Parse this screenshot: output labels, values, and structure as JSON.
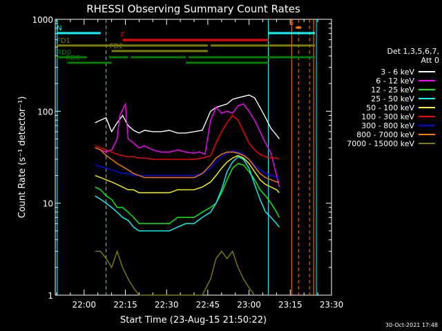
{
  "chart_data": {
    "type": "line",
    "title": "RHESSI Observing Summary Count Rates",
    "xlabel": "Start Time (23-Aug-15 21:50:22)",
    "ylabel": "Count Rate (s⁻¹ detector⁻¹)",
    "x_unit": "minutes after 22:00 UT",
    "xlim": [
      -10.5,
      90
    ],
    "ylim": [
      1,
      1000
    ],
    "y_scale": "log",
    "x_tick_values": [
      0,
      15,
      30,
      45,
      60,
      75,
      90
    ],
    "x_tick_labels": [
      "22:00",
      "22:15",
      "22:30",
      "22:45",
      "23:00",
      "23:15",
      "23:30"
    ],
    "y_tick_values": [
      1,
      10,
      100,
      1000
    ],
    "y_tick_labels": [
      "1",
      "10",
      "100",
      "1000"
    ],
    "legend_header": [
      "Det 1,3,5,6,7,",
      "Att 0"
    ],
    "legend_position": "right",
    "series": [
      {
        "name": "3 - 6 keV",
        "color": "#000000",
        "points": [
          [
            4,
            75
          ],
          [
            6,
            80
          ],
          [
            8,
            85
          ],
          [
            10,
            60
          ],
          [
            12,
            75
          ],
          [
            14,
            90
          ],
          [
            16,
            70
          ],
          [
            18,
            62
          ],
          [
            20,
            58
          ],
          [
            22,
            62
          ],
          [
            25,
            60
          ],
          [
            28,
            60
          ],
          [
            31,
            62
          ],
          [
            34,
            58
          ],
          [
            37,
            58
          ],
          [
            40,
            60
          ],
          [
            43,
            62
          ],
          [
            46,
            100
          ],
          [
            48,
            110
          ],
          [
            50,
            115
          ],
          [
            52,
            120
          ],
          [
            54,
            135
          ],
          [
            56,
            140
          ],
          [
            58,
            145
          ],
          [
            60,
            150
          ],
          [
            62,
            140
          ],
          [
            64,
            110
          ],
          [
            66,
            85
          ],
          [
            68,
            65
          ],
          [
            70,
            55
          ],
          [
            71,
            50
          ]
        ]
      },
      {
        "name": "6 - 12 keV",
        "color": "#ff00ff",
        "points": [
          [
            4,
            40
          ],
          [
            6,
            38
          ],
          [
            8,
            36
          ],
          [
            10,
            38
          ],
          [
            12,
            50
          ],
          [
            13,
            90
          ],
          [
            15,
            120
          ],
          [
            16,
            50
          ],
          [
            18,
            45
          ],
          [
            20,
            40
          ],
          [
            22,
            42
          ],
          [
            25,
            38
          ],
          [
            28,
            36
          ],
          [
            31,
            36
          ],
          [
            34,
            38
          ],
          [
            37,
            36
          ],
          [
            40,
            35
          ],
          [
            42,
            36
          ],
          [
            44,
            34
          ],
          [
            46,
            80
          ],
          [
            48,
            110
          ],
          [
            50,
            95
          ],
          [
            52,
            100
          ],
          [
            54,
            95
          ],
          [
            56,
            115
          ],
          [
            58,
            120
          ],
          [
            60,
            100
          ],
          [
            62,
            80
          ],
          [
            64,
            60
          ],
          [
            66,
            45
          ],
          [
            68,
            35
          ],
          [
            70,
            20
          ],
          [
            71,
            15
          ]
        ]
      },
      {
        "name": "12 - 25 keV",
        "color": "#00ff00",
        "points": [
          [
            4,
            15
          ],
          [
            6,
            14
          ],
          [
            8,
            12
          ],
          [
            10,
            11
          ],
          [
            12,
            9
          ],
          [
            14,
            9
          ],
          [
            16,
            8
          ],
          [
            18,
            7
          ],
          [
            20,
            6
          ],
          [
            22,
            6
          ],
          [
            25,
            6
          ],
          [
            28,
            6
          ],
          [
            31,
            6
          ],
          [
            34,
            7
          ],
          [
            37,
            7
          ],
          [
            40,
            7
          ],
          [
            43,
            8
          ],
          [
            46,
            9
          ],
          [
            48,
            10
          ],
          [
            50,
            13
          ],
          [
            52,
            18
          ],
          [
            54,
            24
          ],
          [
            56,
            27
          ],
          [
            58,
            26
          ],
          [
            60,
            22
          ],
          [
            62,
            18
          ],
          [
            64,
            14
          ],
          [
            66,
            12
          ],
          [
            68,
            10
          ],
          [
            70,
            8
          ],
          [
            71,
            7
          ]
        ]
      },
      {
        "name": "25 - 50 keV",
        "color": "#00ffff",
        "points": [
          [
            4,
            12
          ],
          [
            6,
            11
          ],
          [
            8,
            10
          ],
          [
            10,
            9
          ],
          [
            12,
            8
          ],
          [
            14,
            7
          ],
          [
            16,
            6.5
          ],
          [
            18,
            5.5
          ],
          [
            20,
            5
          ],
          [
            22,
            5
          ],
          [
            25,
            5
          ],
          [
            28,
            5
          ],
          [
            31,
            5
          ],
          [
            34,
            5.5
          ],
          [
            37,
            6
          ],
          [
            40,
            6
          ],
          [
            43,
            7
          ],
          [
            46,
            8
          ],
          [
            48,
            10
          ],
          [
            50,
            14
          ],
          [
            52,
            22
          ],
          [
            54,
            28
          ],
          [
            56,
            32
          ],
          [
            58,
            30
          ],
          [
            60,
            24
          ],
          [
            62,
            16
          ],
          [
            64,
            11
          ],
          [
            66,
            8
          ],
          [
            68,
            7
          ],
          [
            70,
            6
          ],
          [
            71,
            5.5
          ]
        ]
      },
      {
        "name": "50 - 100 keV",
        "color": "#ffff00",
        "points": [
          [
            4,
            20
          ],
          [
            6,
            19
          ],
          [
            8,
            18
          ],
          [
            10,
            17
          ],
          [
            12,
            16
          ],
          [
            14,
            15
          ],
          [
            16,
            14
          ],
          [
            18,
            14
          ],
          [
            20,
            13
          ],
          [
            22,
            13
          ],
          [
            25,
            13
          ],
          [
            28,
            13
          ],
          [
            31,
            13
          ],
          [
            34,
            14
          ],
          [
            37,
            14
          ],
          [
            40,
            14
          ],
          [
            43,
            15
          ],
          [
            46,
            17
          ],
          [
            48,
            20
          ],
          [
            50,
            24
          ],
          [
            52,
            28
          ],
          [
            54,
            31
          ],
          [
            56,
            33
          ],
          [
            58,
            31
          ],
          [
            60,
            27
          ],
          [
            62,
            22
          ],
          [
            64,
            18
          ],
          [
            66,
            16
          ],
          [
            68,
            15
          ],
          [
            70,
            14
          ],
          [
            71,
            13
          ]
        ]
      },
      {
        "name": "100 - 300 keV",
        "color": "#ff0000",
        "points": [
          [
            4,
            42
          ],
          [
            6,
            40
          ],
          [
            8,
            38
          ],
          [
            10,
            36
          ],
          [
            12,
            34
          ],
          [
            14,
            33
          ],
          [
            16,
            32
          ],
          [
            18,
            32
          ],
          [
            20,
            31
          ],
          [
            22,
            31
          ],
          [
            25,
            30
          ],
          [
            28,
            30
          ],
          [
            31,
            30
          ],
          [
            34,
            30
          ],
          [
            37,
            30
          ],
          [
            40,
            30
          ],
          [
            43,
            31
          ],
          [
            46,
            33
          ],
          [
            48,
            45
          ],
          [
            50,
            60
          ],
          [
            52,
            75
          ],
          [
            54,
            90
          ],
          [
            56,
            80
          ],
          [
            58,
            60
          ],
          [
            60,
            45
          ],
          [
            62,
            38
          ],
          [
            64,
            34
          ],
          [
            66,
            32
          ],
          [
            68,
            31
          ],
          [
            70,
            31
          ],
          [
            71,
            30
          ]
        ]
      },
      {
        "name": "300 - 800 keV",
        "color": "#0000ff",
        "points": [
          [
            4,
            26
          ],
          [
            6,
            25
          ],
          [
            8,
            24
          ],
          [
            10,
            23
          ],
          [
            12,
            22
          ],
          [
            14,
            21
          ],
          [
            16,
            21
          ],
          [
            18,
            20
          ],
          [
            20,
            20
          ],
          [
            22,
            20
          ],
          [
            25,
            20
          ],
          [
            28,
            20
          ],
          [
            31,
            20
          ],
          [
            34,
            20
          ],
          [
            37,
            20
          ],
          [
            40,
            20
          ],
          [
            43,
            21
          ],
          [
            46,
            24
          ],
          [
            48,
            28
          ],
          [
            50,
            32
          ],
          [
            52,
            35
          ],
          [
            54,
            37
          ],
          [
            56,
            36
          ],
          [
            58,
            34
          ],
          [
            60,
            30
          ],
          [
            62,
            26
          ],
          [
            64,
            23
          ],
          [
            66,
            21
          ],
          [
            68,
            20
          ],
          [
            70,
            19
          ],
          [
            71,
            19
          ]
        ]
      },
      {
        "name": "800 - 7000 keV",
        "color": "#ff8000",
        "points": [
          [
            4,
            40
          ],
          [
            6,
            38
          ],
          [
            8,
            33
          ],
          [
            10,
            30
          ],
          [
            12,
            27
          ],
          [
            14,
            25
          ],
          [
            16,
            23
          ],
          [
            18,
            21
          ],
          [
            20,
            20
          ],
          [
            22,
            19
          ],
          [
            25,
            19
          ],
          [
            28,
            19
          ],
          [
            31,
            19
          ],
          [
            34,
            19
          ],
          [
            37,
            19
          ],
          [
            40,
            19
          ],
          [
            43,
            21
          ],
          [
            46,
            26
          ],
          [
            48,
            31
          ],
          [
            50,
            34
          ],
          [
            52,
            36
          ],
          [
            54,
            36
          ],
          [
            56,
            35
          ],
          [
            58,
            33
          ],
          [
            60,
            30
          ],
          [
            62,
            25
          ],
          [
            64,
            21
          ],
          [
            66,
            19
          ],
          [
            68,
            18
          ],
          [
            70,
            17
          ],
          [
            71,
            17
          ]
        ]
      },
      {
        "name": "7000 - 15000 keV",
        "color": "#808000",
        "points": [
          [
            4,
            3
          ],
          [
            6,
            3
          ],
          [
            8,
            2.5
          ],
          [
            10,
            2
          ],
          [
            12,
            3
          ],
          [
            14,
            2
          ],
          [
            16,
            1.5
          ],
          [
            18,
            1.2
          ],
          [
            20,
            1
          ],
          [
            22,
            1
          ],
          [
            25,
            1
          ],
          [
            28,
            1
          ],
          [
            31,
            1
          ],
          [
            34,
            1
          ],
          [
            37,
            1
          ],
          [
            40,
            1
          ],
          [
            43,
            1
          ],
          [
            46,
            1.5
          ],
          [
            48,
            2.5
          ],
          [
            50,
            3
          ],
          [
            52,
            2.5
          ],
          [
            54,
            3
          ],
          [
            56,
            2
          ],
          [
            58,
            1.5
          ],
          [
            60,
            1.2
          ],
          [
            62,
            1
          ]
        ]
      }
    ],
    "flag_bars": [
      {
        "label": "N",
        "color": "#00ffff",
        "segments": [
          [
            -10,
            6
          ],
          [
            67,
            84
          ]
        ]
      },
      {
        "label": "F",
        "color": "#ff0000",
        "segments": [
          [
            14,
            67
          ]
        ]
      },
      {
        "label": "FD1",
        "color": "#808000",
        "segments": [
          [
            -10,
            45
          ],
          [
            46,
            84
          ]
        ]
      },
      {
        "label": "FD2",
        "color": "#808000",
        "segments": [
          [
            10,
            45
          ]
        ]
      },
      {
        "label": "RD0",
        "color": "#008000",
        "segments": [
          [
            -10,
            1
          ],
          [
            9,
            16
          ],
          [
            17,
            37
          ],
          [
            38,
            84
          ]
        ]
      },
      {
        "label": "RD6",
        "color": "#008000",
        "segments": [
          [
            -6,
            10
          ],
          [
            37,
            67
          ]
        ]
      },
      {
        "label": "S",
        "color": "#ff8000",
        "segments": [
          [
            77,
            79
          ]
        ]
      }
    ],
    "vertical_markers": [
      {
        "color": "#00ffff",
        "style": "solid",
        "x": -9.8
      },
      {
        "color": "#00ffff",
        "style": "dashed",
        "x": 8
      },
      {
        "color": "#00ffff",
        "style": "solid",
        "x": 67
      },
      {
        "color": "#00ffff",
        "style": "solid",
        "x": 84.5
      },
      {
        "color": "#ff8000",
        "style": "solid",
        "x": 75.5
      },
      {
        "color": "#ff8000",
        "style": "dashed",
        "x": 78
      },
      {
        "color": "#ff8000",
        "style": "dashed",
        "x": 82
      },
      {
        "color": "#ff8000",
        "style": "solid",
        "x": 83.5
      }
    ]
  },
  "footer": {
    "timestamp": "30-Oct-2021 17:48"
  }
}
